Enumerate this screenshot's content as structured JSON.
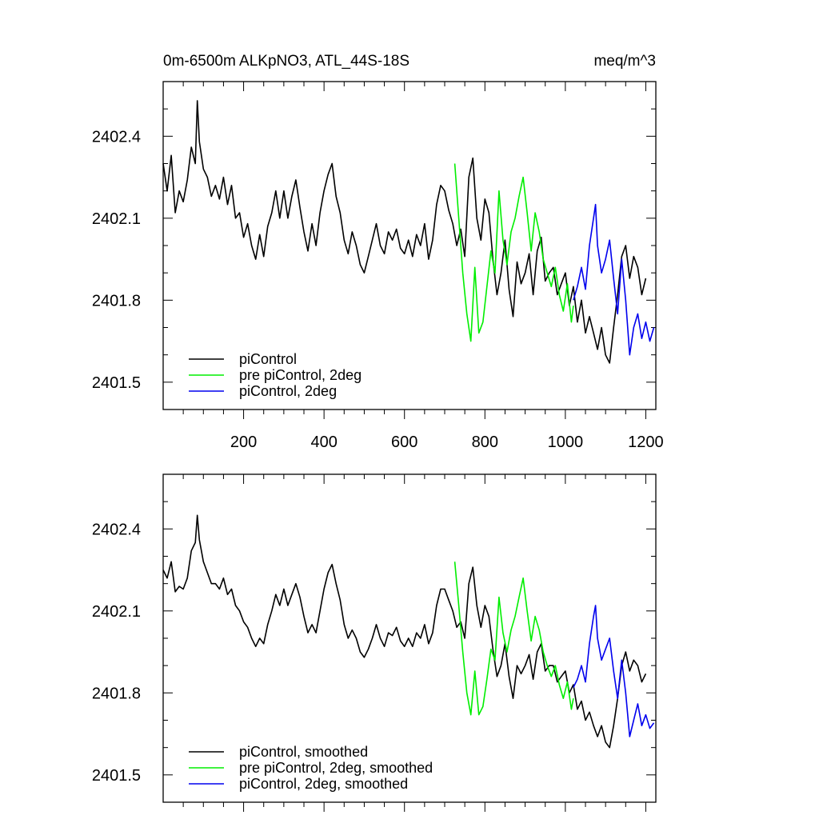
{
  "header": {
    "title": "0m-6500m ALKpNO3, ATL_44S-18S",
    "units": "meq/m^3"
  },
  "colors": {
    "piControl": "#000000",
    "pre_piControl_2deg": "#00ee00",
    "piControl_2deg": "#0000ee",
    "axes": "#000000"
  },
  "chart_data": [
    {
      "type": "line",
      "xlim": [
        0,
        1225
      ],
      "ylim": [
        2401.4,
        2402.6
      ],
      "x_ticks": [
        200,
        400,
        600,
        800,
        1000,
        1200
      ],
      "y_ticks": [
        2401.5,
        2401.8,
        2402.1,
        2402.4
      ],
      "x_tick_labels": [
        "200",
        "400",
        "600",
        "800",
        "1000",
        "1200"
      ],
      "y_tick_labels": [
        "2401.5",
        "2401.8",
        "2402.1",
        "2402.4"
      ],
      "legend_position": "bottom-left",
      "series": [
        {
          "name": "piControl",
          "color_key": "piControl",
          "x": [
            0,
            10,
            20,
            30,
            40,
            50,
            60,
            70,
            80,
            85,
            90,
            100,
            110,
            120,
            130,
            140,
            150,
            160,
            170,
            180,
            190,
            200,
            210,
            220,
            230,
            240,
            250,
            260,
            270,
            280,
            290,
            300,
            310,
            320,
            330,
            340,
            350,
            360,
            370,
            380,
            390,
            400,
            410,
            420,
            430,
            440,
            450,
            460,
            470,
            480,
            490,
            500,
            510,
            520,
            530,
            540,
            550,
            560,
            570,
            580,
            590,
            600,
            610,
            620,
            630,
            640,
            650,
            660,
            670,
            680,
            690,
            700,
            710,
            720,
            730,
            740,
            750,
            760,
            770,
            780,
            790,
            800,
            810,
            820,
            830,
            840,
            850,
            860,
            870,
            880,
            890,
            900,
            910,
            920,
            930,
            940,
            950,
            960,
            970,
            980,
            990,
            1000,
            1010,
            1020,
            1030,
            1040,
            1050,
            1060,
            1070,
            1080,
            1090,
            1100,
            1110,
            1120,
            1130,
            1140,
            1150,
            1160,
            1170,
            1180,
            1190,
            1200
          ],
          "y": [
            2402.3,
            2402.2,
            2402.33,
            2402.12,
            2402.2,
            2402.16,
            2402.24,
            2402.36,
            2402.3,
            2402.53,
            2402.38,
            2402.28,
            2402.25,
            2402.18,
            2402.22,
            2402.17,
            2402.25,
            2402.15,
            2402.22,
            2402.1,
            2402.12,
            2402.03,
            2402.08,
            2402.0,
            2401.95,
            2402.04,
            2401.96,
            2402.07,
            2402.12,
            2402.2,
            2402.1,
            2402.2,
            2402.1,
            2402.18,
            2402.24,
            2402.14,
            2402.05,
            2401.98,
            2402.08,
            2402.0,
            2402.12,
            2402.2,
            2402.26,
            2402.3,
            2402.18,
            2402.12,
            2402.02,
            2401.97,
            2402.05,
            2402.0,
            2401.93,
            2401.9,
            2401.96,
            2402.02,
            2402.08,
            2402.0,
            2401.97,
            2402.05,
            2402.02,
            2402.06,
            2401.99,
            2401.97,
            2402.02,
            2401.96,
            2402.04,
            2402.0,
            2402.08,
            2401.95,
            2402.02,
            2402.15,
            2402.22,
            2402.2,
            2402.13,
            2402.08,
            2402.0,
            2402.06,
            2401.96,
            2402.25,
            2402.32,
            2402.1,
            2402.02,
            2402.17,
            2402.12,
            2401.95,
            2401.82,
            2401.9,
            2402.02,
            2401.84,
            2401.74,
            2401.94,
            2401.86,
            2401.9,
            2401.97,
            2401.82,
            2401.98,
            2402.03,
            2401.87,
            2401.9,
            2401.92,
            2401.82,
            2401.86,
            2401.9,
            2401.78,
            2401.85,
            2401.72,
            2401.8,
            2401.68,
            2401.74,
            2401.68,
            2401.62,
            2401.7,
            2401.6,
            2401.57,
            2401.7,
            2401.82,
            2401.96,
            2402.0,
            2401.88,
            2401.96,
            2401.92,
            2401.82,
            2401.88
          ]
        },
        {
          "name": "pre piControl, 2deg",
          "color_key": "pre_piControl_2deg",
          "x": [
            725,
            735,
            745,
            755,
            765,
            775,
            785,
            795,
            805,
            815,
            825,
            835,
            845,
            855,
            865,
            875,
            885,
            895,
            905,
            915,
            925,
            935,
            945,
            955,
            965,
            975,
            985,
            995,
            1005,
            1015,
            1020
          ],
          "y": [
            2402.3,
            2402.1,
            2401.9,
            2401.75,
            2401.65,
            2401.92,
            2401.68,
            2401.72,
            2401.85,
            2401.98,
            2401.9,
            2402.2,
            2402.02,
            2401.93,
            2402.05,
            2402.1,
            2402.18,
            2402.25,
            2402.12,
            2401.98,
            2402.12,
            2402.05,
            2401.95,
            2401.9,
            2401.85,
            2401.92,
            2401.82,
            2401.76,
            2401.86,
            2401.72,
            2401.78
          ]
        },
        {
          "name": "piControl, 2deg",
          "color_key": "piControl_2deg",
          "x": [
            1020,
            1030,
            1040,
            1050,
            1060,
            1070,
            1075,
            1080,
            1090,
            1100,
            1110,
            1120,
            1130,
            1140,
            1150,
            1160,
            1170,
            1180,
            1190,
            1200,
            1210,
            1220
          ],
          "y": [
            2401.8,
            2401.85,
            2401.92,
            2401.84,
            2402.0,
            2402.1,
            2402.15,
            2402.0,
            2401.9,
            2401.95,
            2402.02,
            2401.88,
            2401.75,
            2401.95,
            2401.8,
            2401.6,
            2401.7,
            2401.75,
            2401.66,
            2401.72,
            2401.65,
            2401.7
          ]
        }
      ]
    },
    {
      "type": "line",
      "xlim": [
        0,
        1225
      ],
      "ylim": [
        2401.4,
        2402.6
      ],
      "x_ticks": [
        200,
        400,
        600,
        800,
        1000,
        1200
      ],
      "y_ticks": [
        2401.5,
        2401.8,
        2402.1,
        2402.4
      ],
      "x_tick_labels": [],
      "y_tick_labels": [
        "2401.5",
        "2401.8",
        "2402.1",
        "2402.4"
      ],
      "legend_position": "bottom-left",
      "series": [
        {
          "name": "piControl, smoothed",
          "color_key": "piControl",
          "x": [
            0,
            10,
            20,
            30,
            40,
            50,
            60,
            70,
            80,
            85,
            90,
            100,
            110,
            120,
            130,
            140,
            150,
            160,
            170,
            180,
            190,
            200,
            210,
            220,
            230,
            240,
            250,
            260,
            270,
            280,
            290,
            300,
            310,
            320,
            330,
            340,
            350,
            360,
            370,
            380,
            390,
            400,
            410,
            420,
            430,
            440,
            450,
            460,
            470,
            480,
            490,
            500,
            510,
            520,
            530,
            540,
            550,
            560,
            570,
            580,
            590,
            600,
            610,
            620,
            630,
            640,
            650,
            660,
            670,
            680,
            690,
            700,
            710,
            720,
            730,
            740,
            750,
            760,
            770,
            780,
            790,
            800,
            810,
            820,
            830,
            840,
            850,
            860,
            870,
            880,
            890,
            900,
            910,
            920,
            930,
            940,
            950,
            960,
            970,
            980,
            990,
            1000,
            1010,
            1020,
            1030,
            1040,
            1050,
            1060,
            1070,
            1080,
            1090,
            1100,
            1110,
            1120,
            1130,
            1140,
            1150,
            1160,
            1170,
            1180,
            1190,
            1200
          ],
          "y": [
            2402.25,
            2402.22,
            2402.28,
            2402.17,
            2402.19,
            2402.18,
            2402.22,
            2402.32,
            2402.35,
            2402.45,
            2402.36,
            2402.28,
            2402.24,
            2402.2,
            2402.2,
            2402.18,
            2402.22,
            2402.16,
            2402.18,
            2402.12,
            2402.1,
            2402.06,
            2402.04,
            2402.0,
            2401.97,
            2402.0,
            2401.98,
            2402.05,
            2402.1,
            2402.16,
            2402.12,
            2402.18,
            2402.12,
            2402.16,
            2402.2,
            2402.15,
            2402.08,
            2402.02,
            2402.05,
            2402.02,
            2402.1,
            2402.18,
            2402.24,
            2402.27,
            2402.2,
            2402.14,
            2402.05,
            2402.0,
            2402.03,
            2402.0,
            2401.95,
            2401.93,
            2401.96,
            2402.0,
            2402.05,
            2402.0,
            2401.97,
            2402.02,
            2402.01,
            2402.04,
            2401.99,
            2401.97,
            2402.0,
            2401.97,
            2402.02,
            2402.0,
            2402.05,
            2401.98,
            2402.02,
            2402.12,
            2402.18,
            2402.18,
            2402.14,
            2402.1,
            2402.04,
            2402.06,
            2402.0,
            2402.2,
            2402.26,
            2402.12,
            2402.04,
            2402.12,
            2402.08,
            2401.96,
            2401.86,
            2401.9,
            2401.98,
            2401.86,
            2401.78,
            2401.9,
            2401.87,
            2401.9,
            2401.94,
            2401.85,
            2401.95,
            2401.98,
            2401.88,
            2401.9,
            2401.9,
            2401.84,
            2401.86,
            2401.88,
            2401.8,
            2401.83,
            2401.74,
            2401.77,
            2401.7,
            2401.73,
            2401.68,
            2401.64,
            2401.68,
            2401.62,
            2401.6,
            2401.68,
            2401.78,
            2401.9,
            2401.95,
            2401.88,
            2401.92,
            2401.9,
            2401.84,
            2401.87
          ]
        },
        {
          "name": "pre piControl, 2deg, smoothed",
          "color_key": "pre_piControl_2deg",
          "x": [
            725,
            735,
            745,
            755,
            765,
            775,
            785,
            795,
            805,
            815,
            825,
            835,
            845,
            855,
            865,
            875,
            885,
            895,
            905,
            915,
            925,
            935,
            945,
            955,
            965,
            975,
            985,
            995,
            1005,
            1015,
            1020
          ],
          "y": [
            2402.28,
            2402.12,
            2401.95,
            2401.8,
            2401.72,
            2401.88,
            2401.72,
            2401.75,
            2401.85,
            2401.96,
            2401.92,
            2402.15,
            2402.02,
            2401.95,
            2402.03,
            2402.08,
            2402.15,
            2402.22,
            2402.1,
            2401.99,
            2402.08,
            2402.03,
            2401.95,
            2401.9,
            2401.86,
            2401.9,
            2401.83,
            2401.78,
            2401.84,
            2401.74,
            2401.78
          ]
        },
        {
          "name": "piControl, 2deg, smoothed",
          "color_key": "piControl_2deg",
          "x": [
            1020,
            1030,
            1040,
            1050,
            1060,
            1070,
            1075,
            1080,
            1090,
            1100,
            1110,
            1120,
            1130,
            1140,
            1150,
            1160,
            1170,
            1180,
            1190,
            1200,
            1210,
            1220
          ],
          "y": [
            2401.82,
            2401.85,
            2401.9,
            2401.84,
            2401.98,
            2402.08,
            2402.12,
            2402.0,
            2401.92,
            2401.96,
            2402.0,
            2401.88,
            2401.78,
            2401.92,
            2401.8,
            2401.64,
            2401.7,
            2401.76,
            2401.68,
            2401.72,
            2401.67,
            2401.69
          ]
        }
      ]
    }
  ]
}
